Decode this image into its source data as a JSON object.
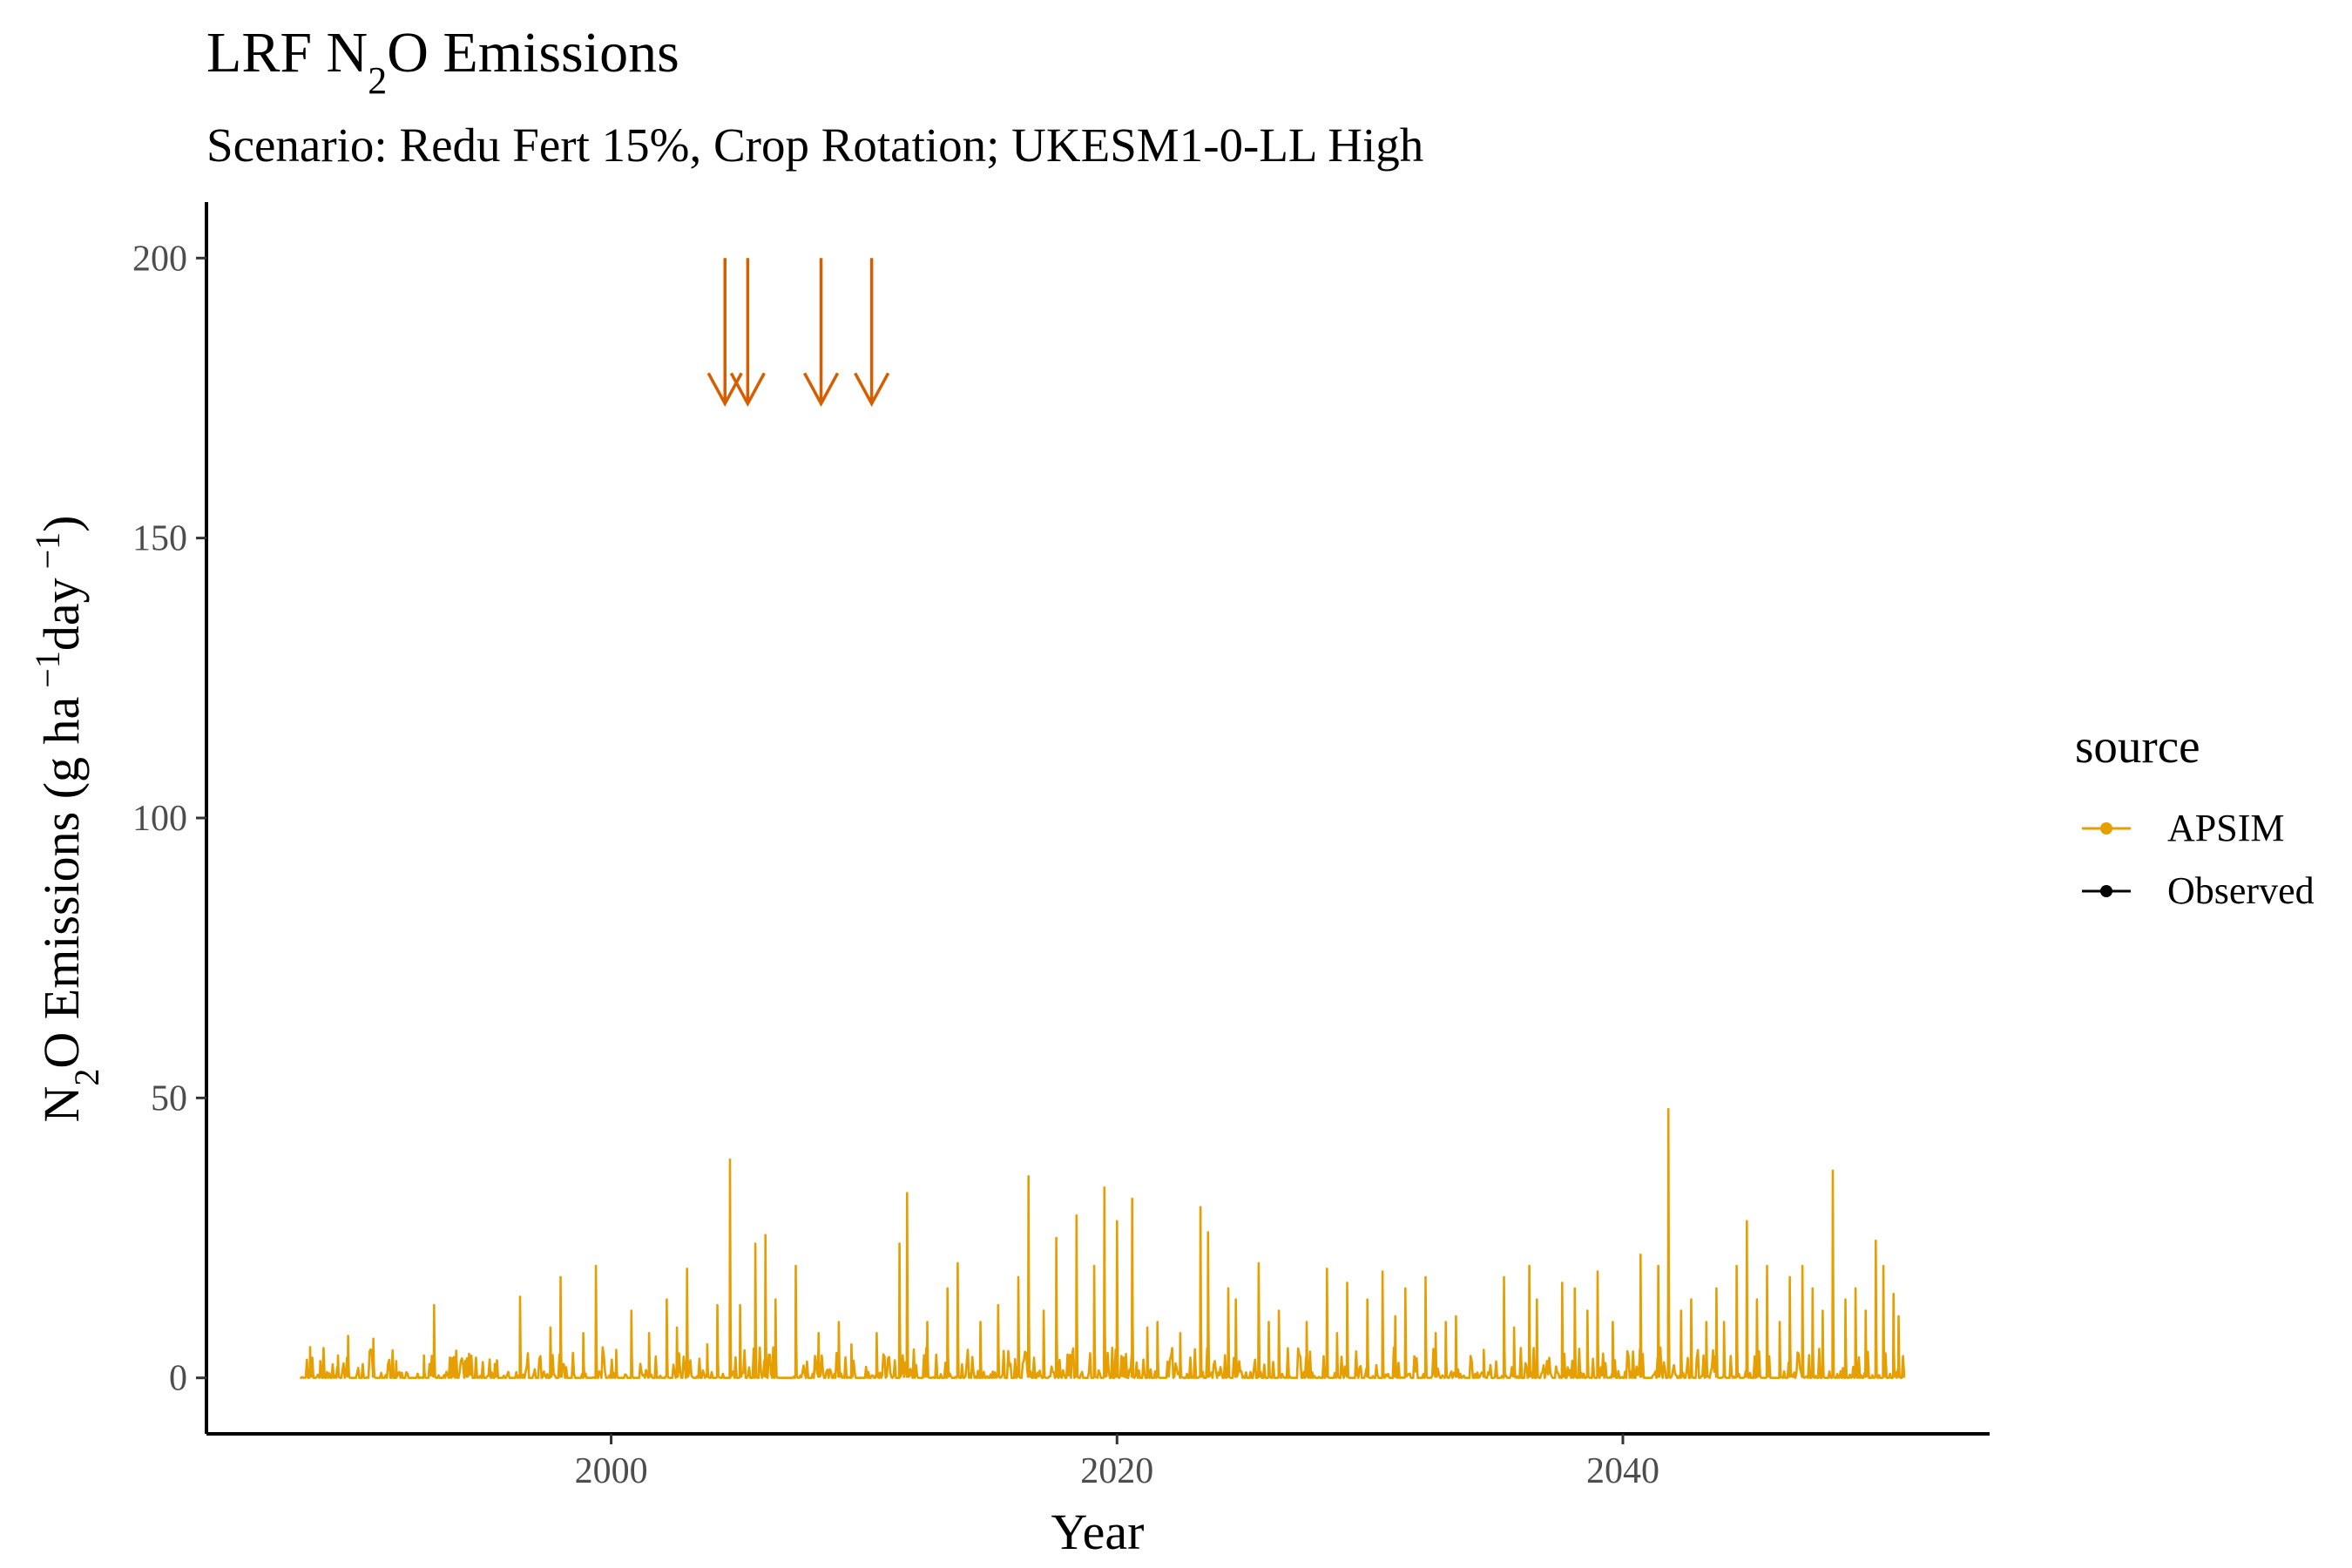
{
  "chart_data": {
    "type": "line",
    "title_prefix": "LRF N",
    "title_sub": "2",
    "title_suffix": "O Emissions",
    "subtitle": "Scenario: Redu Fert 15%, Crop Rotation; UKESM1-0-LL High",
    "xlabel": "Year",
    "ylabel_parts": {
      "n": "N",
      "sub2": "2",
      "mid": "O Emissions (g ha",
      "exp1": " −1",
      "day": "day",
      "exp2": " −1",
      "close": ")"
    },
    "xlim": [
      1984.0,
      2054.5
    ],
    "ylim": [
      -10,
      210
    ],
    "x_ticks": [
      2000,
      2020,
      2040
    ],
    "y_ticks": [
      0,
      50,
      100,
      150,
      200
    ],
    "grid": false,
    "legend": {
      "title": "source",
      "position": "right",
      "entries": [
        {
          "label": "APSIM",
          "color": "#E69F00"
        },
        {
          "label": "Observed",
          "color": "#000000"
        }
      ]
    },
    "annotations": {
      "type": "arrows",
      "color": "#D55E00",
      "x": [
        2004.5,
        2005.4,
        2008.3,
        2010.3
      ],
      "y_start": 200,
      "y_end": 174
    },
    "series": [
      {
        "name": "APSIM",
        "color": "#E69F00",
        "x_start": 1987.7,
        "x_end": 2051.1,
        "peaks": [
          [
            1988.1,
            5.5
          ],
          [
            1988.5,
            3
          ],
          [
            1989.2,
            4
          ],
          [
            1989.6,
            7.5
          ],
          [
            1990.6,
            7
          ],
          [
            1991.5,
            3
          ],
          [
            1992.6,
            4
          ],
          [
            1993.0,
            13
          ],
          [
            1993.7,
            3.5
          ],
          [
            1994.3,
            3.5
          ],
          [
            1995.4,
            2.5
          ],
          [
            1996.4,
            14.5
          ],
          [
            1997.6,
            9
          ],
          [
            1998.0,
            18
          ],
          [
            1998.9,
            8
          ],
          [
            1999.4,
            20
          ],
          [
            2000.2,
            5
          ],
          [
            2000.8,
            12
          ],
          [
            2001.5,
            8
          ],
          [
            2002.2,
            14
          ],
          [
            2002.6,
            9
          ],
          [
            2003.0,
            19.5
          ],
          [
            2003.8,
            6
          ],
          [
            2004.2,
            13
          ],
          [
            2004.7,
            39
          ],
          [
            2005.1,
            13
          ],
          [
            2005.7,
            24
          ],
          [
            2006.1,
            25.5
          ],
          [
            2006.5,
            14
          ],
          [
            2007.3,
            20
          ],
          [
            2008.2,
            8
          ],
          [
            2009.0,
            10
          ],
          [
            2009.5,
            6
          ],
          [
            2010.5,
            8
          ],
          [
            2011.4,
            24
          ],
          [
            2011.7,
            33
          ],
          [
            2012.5,
            10
          ],
          [
            2013.3,
            16
          ],
          [
            2013.7,
            20.5
          ],
          [
            2014.6,
            10
          ],
          [
            2015.3,
            13
          ],
          [
            2016.1,
            18
          ],
          [
            2016.5,
            36
          ],
          [
            2017.1,
            12
          ],
          [
            2017.6,
            25
          ],
          [
            2018.4,
            29
          ],
          [
            2019.1,
            20
          ],
          [
            2019.5,
            34
          ],
          [
            2020.0,
            28
          ],
          [
            2020.6,
            32
          ],
          [
            2021.2,
            9
          ],
          [
            2021.6,
            10
          ],
          [
            2022.5,
            8
          ],
          [
            2023.3,
            30.5
          ],
          [
            2023.6,
            26
          ],
          [
            2024.4,
            16
          ],
          [
            2024.7,
            14
          ],
          [
            2025.6,
            20.5
          ],
          [
            2026.0,
            10
          ],
          [
            2026.4,
            12
          ],
          [
            2027.5,
            10
          ],
          [
            2028.3,
            19.5
          ],
          [
            2028.7,
            8
          ],
          [
            2029.1,
            17
          ],
          [
            2029.9,
            14
          ],
          [
            2030.5,
            19
          ],
          [
            2031.0,
            11
          ],
          [
            2031.4,
            16
          ],
          [
            2032.2,
            18
          ],
          [
            2032.6,
            8
          ],
          [
            2033.0,
            10
          ],
          [
            2033.4,
            11
          ],
          [
            2034.5,
            5
          ],
          [
            2035.3,
            18
          ],
          [
            2035.7,
            9
          ],
          [
            2036.3,
            20
          ],
          [
            2036.6,
            14
          ],
          [
            2037.6,
            17
          ],
          [
            2038.1,
            16
          ],
          [
            2038.6,
            12
          ],
          [
            2039.0,
            19
          ],
          [
            2039.6,
            10
          ],
          [
            2040.7,
            22
          ],
          [
            2041.4,
            20
          ],
          [
            2041.8,
            48
          ],
          [
            2042.3,
            12
          ],
          [
            2042.7,
            14
          ],
          [
            2043.3,
            10
          ],
          [
            2043.7,
            16
          ],
          [
            2044.0,
            10
          ],
          [
            2044.5,
            20
          ],
          [
            2044.9,
            28
          ],
          [
            2045.3,
            14
          ],
          [
            2045.7,
            20
          ],
          [
            2046.2,
            10
          ],
          [
            2046.6,
            18
          ],
          [
            2047.1,
            20
          ],
          [
            2047.5,
            16
          ],
          [
            2047.9,
            12
          ],
          [
            2048.3,
            37
          ],
          [
            2048.8,
            14
          ],
          [
            2049.2,
            16
          ],
          [
            2049.6,
            12
          ],
          [
            2050.0,
            24.5
          ],
          [
            2050.3,
            20
          ],
          [
            2050.7,
            15
          ],
          [
            2050.9,
            11
          ]
        ]
      },
      {
        "name": "Observed",
        "color": "#000000",
        "points": []
      }
    ]
  }
}
